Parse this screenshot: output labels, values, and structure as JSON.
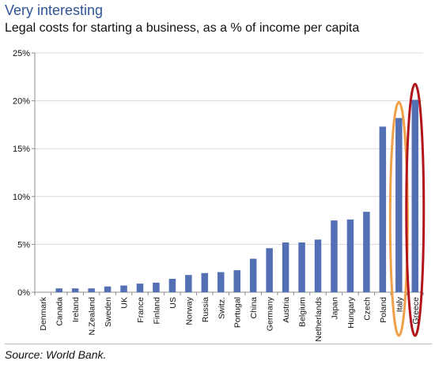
{
  "header": {
    "title": "Very interesting",
    "subtitle": "Legal costs for starting a business, as a % of income per capita"
  },
  "footer": {
    "source": "Source: World Bank."
  },
  "colors": {
    "bar": "#5470b4",
    "title": "#2f5597",
    "highlight_italy": "#f0a048",
    "highlight_greece": "#b2141c",
    "grid": "#d9d9d9"
  },
  "chart_data": {
    "type": "bar",
    "title": "Legal costs for starting a business, as a % of income per capita",
    "xlabel": "",
    "ylabel": "",
    "ylim": [
      0,
      25
    ],
    "yticks": [
      "0%",
      "5%",
      "10%",
      "15%",
      "20%",
      "25%"
    ],
    "grid": true,
    "categories": [
      "Denmark",
      "Canada",
      "Ireland",
      "N.Zealand",
      "Sweden",
      "UK",
      "France",
      "Finland",
      "US",
      "Norway",
      "Russia",
      "Switz.",
      "Portugal",
      "China",
      "Germany",
      "Austria",
      "Belgium",
      "Netherlands",
      "Japan",
      "Hungary",
      "Czech",
      "Poland",
      "Italy",
      "Greece"
    ],
    "values": [
      0.0,
      0.4,
      0.4,
      0.4,
      0.6,
      0.7,
      0.9,
      1.0,
      1.4,
      1.8,
      2.0,
      2.1,
      2.3,
      3.5,
      4.6,
      5.2,
      5.2,
      5.5,
      7.5,
      7.6,
      8.4,
      17.3,
      18.2,
      20.1
    ],
    "highlights": [
      {
        "category": "Italy",
        "color": "orange"
      },
      {
        "category": "Greece",
        "color": "dark-red"
      }
    ]
  }
}
